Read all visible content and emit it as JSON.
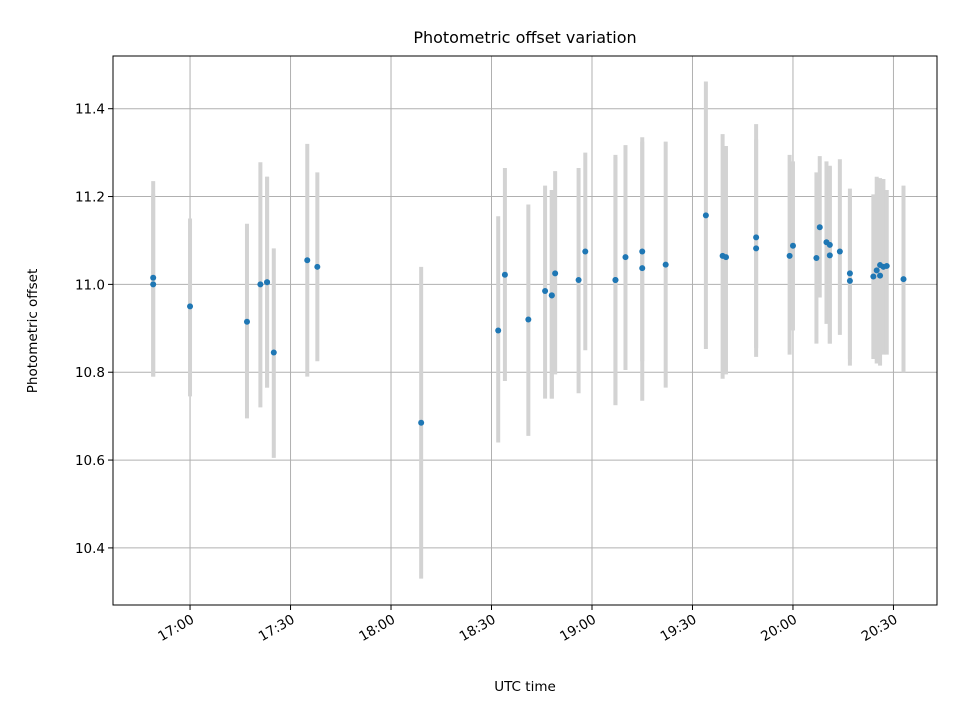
{
  "chart_data": {
    "type": "scatter",
    "title": "Photometric offset variation",
    "xlabel": "UTC time",
    "ylabel": "Photometric offset",
    "x_tick_labels": [
      "17:00",
      "17:30",
      "18:00",
      "18:30",
      "19:00",
      "19:30",
      "20:00",
      "20:30"
    ],
    "y_tick_labels": [
      "10.4",
      "10.6",
      "10.8",
      "11.0",
      "11.2",
      "11.4"
    ],
    "y_ticks": [
      10.4,
      10.6,
      10.8,
      11.0,
      11.2,
      11.4
    ],
    "x_ticks": [
      "17:00",
      "17:30",
      "18:00",
      "18:30",
      "19:00",
      "19:30",
      "20:00",
      "20:30"
    ],
    "xlim": [
      "16:37",
      "20:43"
    ],
    "ylim": [
      10.27,
      11.52
    ],
    "grid": true,
    "colors": {
      "point": "#1f77b4",
      "errorbar": "#d3d3d3",
      "grid": "#b0b0b0"
    },
    "series": [
      {
        "x": [
          "16:49",
          "16:49",
          "17:00",
          "17:17",
          "17:21",
          "17:23",
          "17:23",
          "17:25",
          "17:35",
          "17:38",
          "18:09",
          "18:32",
          "18:34",
          "18:41",
          "18:46",
          "18:48",
          "18:48",
          "18:49",
          "18:56",
          "18:58",
          "19:07",
          "19:07",
          "19:10",
          "19:15",
          "19:15",
          "19:22",
          "19:34",
          "19:39",
          "19:40",
          "19:49",
          "19:49",
          "19:59",
          "20:00",
          "20:07",
          "20:08",
          "20:10",
          "20:11",
          "20:11",
          "20:14",
          "20:17",
          "20:17",
          "20:24",
          "20:25",
          "20:26",
          "20:26",
          "20:27",
          "20:28",
          "20:33"
        ],
        "y": [
          11.0,
          11.015,
          10.95,
          10.915,
          11.0,
          11.005,
          11.005,
          10.845,
          11.055,
          11.04,
          10.685,
          10.895,
          11.022,
          10.92,
          10.985,
          10.975,
          10.975,
          11.025,
          11.01,
          11.075,
          11.01,
          11.01,
          11.062,
          11.075,
          11.037,
          11.045,
          11.157,
          11.065,
          11.062,
          11.082,
          11.107,
          11.065,
          11.088,
          11.06,
          11.13,
          11.096,
          11.09,
          11.066,
          11.075,
          11.025,
          11.008,
          11.018,
          11.032,
          11.02,
          11.044,
          11.04,
          11.042,
          11.012
        ],
        "yerr_low": [
          10.79,
          10.79,
          10.745,
          10.695,
          10.72,
          10.765,
          10.765,
          10.605,
          10.79,
          10.825,
          10.33,
          10.64,
          10.78,
          10.655,
          10.74,
          10.74,
          10.74,
          10.795,
          10.752,
          10.85,
          10.725,
          10.725,
          10.805,
          10.735,
          10.825,
          10.765,
          10.853,
          10.785,
          10.795,
          10.835,
          10.855,
          10.84,
          10.895,
          10.865,
          10.97,
          10.91,
          10.865,
          10.865,
          10.885,
          10.83,
          10.815,
          10.83,
          10.82,
          10.815,
          10.855,
          10.84,
          10.84,
          10.8
        ],
        "yerr_high": [
          11.205,
          11.235,
          11.15,
          11.138,
          11.278,
          11.245,
          11.245,
          11.082,
          11.32,
          11.255,
          11.04,
          11.155,
          11.265,
          11.182,
          11.225,
          11.215,
          11.215,
          11.258,
          11.265,
          11.3,
          11.29,
          11.295,
          11.317,
          11.325,
          11.335,
          11.325,
          11.462,
          11.342,
          11.315,
          11.33,
          11.365,
          11.295,
          11.28,
          11.255,
          11.292,
          11.28,
          11.27,
          11.268,
          11.285,
          11.218,
          11.2,
          11.205,
          11.245,
          11.23,
          11.242,
          11.24,
          11.215,
          11.225
        ]
      }
    ]
  }
}
